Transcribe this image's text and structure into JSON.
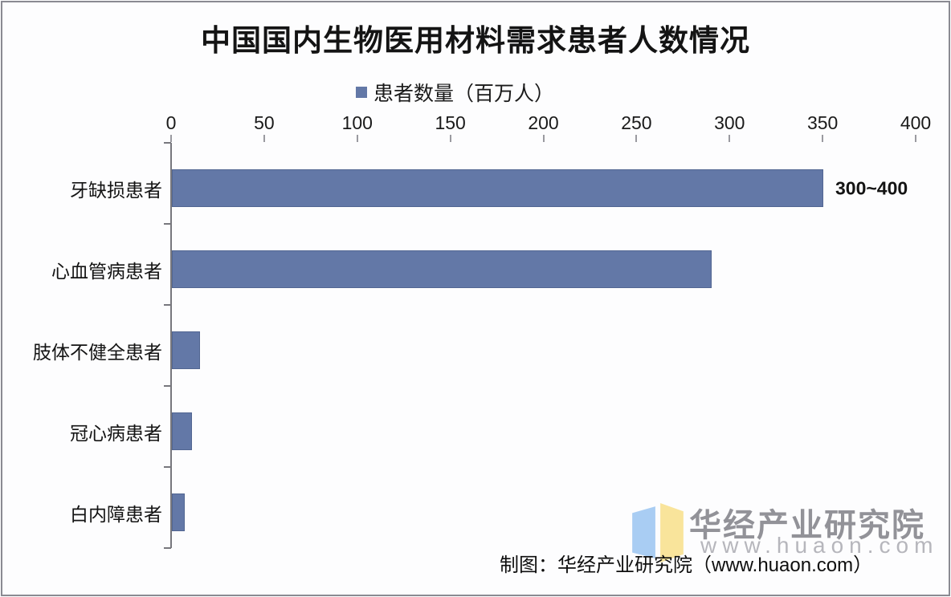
{
  "title": "中国国内生物医用材料需求患者人数情况",
  "legend": {
    "label": "患者数量（百万人）",
    "marker_color": "#6378A7"
  },
  "chart_data": {
    "type": "bar",
    "orientation": "horizontal",
    "title": "中国国内生物医用材料需求患者人数情况",
    "series_name": "患者数量（百万人）",
    "categories": [
      "牙缺损患者",
      "心血管病患者",
      "肢体不健全患者",
      "冠心病患者",
      "白内障患者"
    ],
    "values": [
      350,
      290,
      15,
      11,
      7
    ],
    "data_labels": [
      "300~400",
      "",
      "",
      "",
      ""
    ],
    "unit": "百万人",
    "xlim": [
      0,
      400
    ],
    "x_ticks": [
      0,
      50,
      100,
      150,
      200,
      250,
      300,
      350,
      400
    ],
    "axis_position": "top",
    "grid": false,
    "legend_position": "top-center",
    "bar_color": "#6378A7"
  },
  "watermark": {
    "name": "华经产业研究院",
    "url": "www.huaon.com",
    "book_blue": "#A9CDF3",
    "book_yellow": "#F9E49B"
  },
  "footer": {
    "credit": "制图：华经产业研究院（www.huaon.com）"
  },
  "colors": {
    "bar": "#6378A7",
    "bar_border": "#526692",
    "axis": "#77777d",
    "text": "#141414",
    "watermark_name": "#929298",
    "watermark_url": "#b6b6bc",
    "frame": "#8a8a92",
    "background": "#fdfdfe"
  }
}
